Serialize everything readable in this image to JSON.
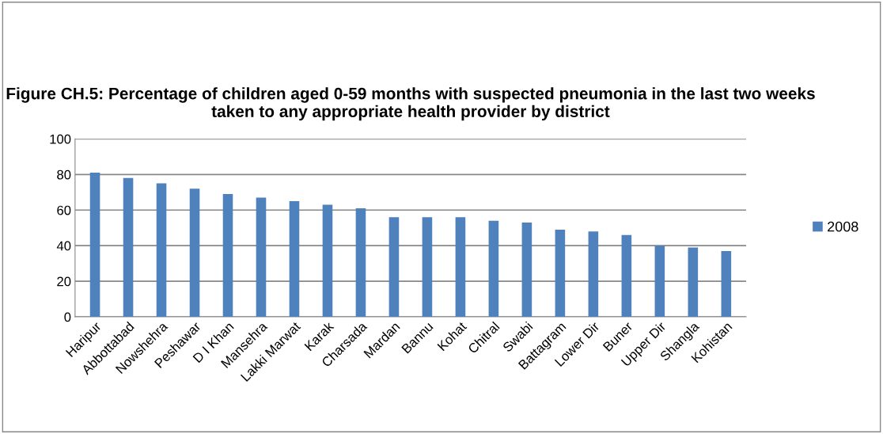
{
  "chart_data": {
    "type": "bar",
    "title": "Figure CH.5: Percentage of children aged 0-59 months with suspected pneumonia in the last two weeks taken to any appropriate health provider by district",
    "categories": [
      "Haripur",
      "Abbottabad",
      "Nowshehra",
      "Peshawar",
      "D I Khan",
      "Mansehra",
      "Lakki Marwat",
      "Karak",
      "Charsada",
      "Mardan",
      "Bannu",
      "Kohat",
      "Chitral",
      "Swabi",
      "Battagram",
      "Lower Dir",
      "Buner",
      "Upper Dir",
      "Shangla",
      "Kohistan"
    ],
    "series": [
      {
        "name": "2008",
        "color": "#4f81bd",
        "values": [
          81,
          78,
          75,
          72,
          69,
          67,
          65,
          63,
          61,
          56,
          56,
          56,
          54,
          53,
          49,
          48,
          46,
          40,
          39,
          37
        ]
      }
    ],
    "ylim": [
      0,
      100
    ],
    "yticks": [
      0,
      20,
      40,
      60,
      80,
      100
    ],
    "grid": "y",
    "legend": "right"
  }
}
